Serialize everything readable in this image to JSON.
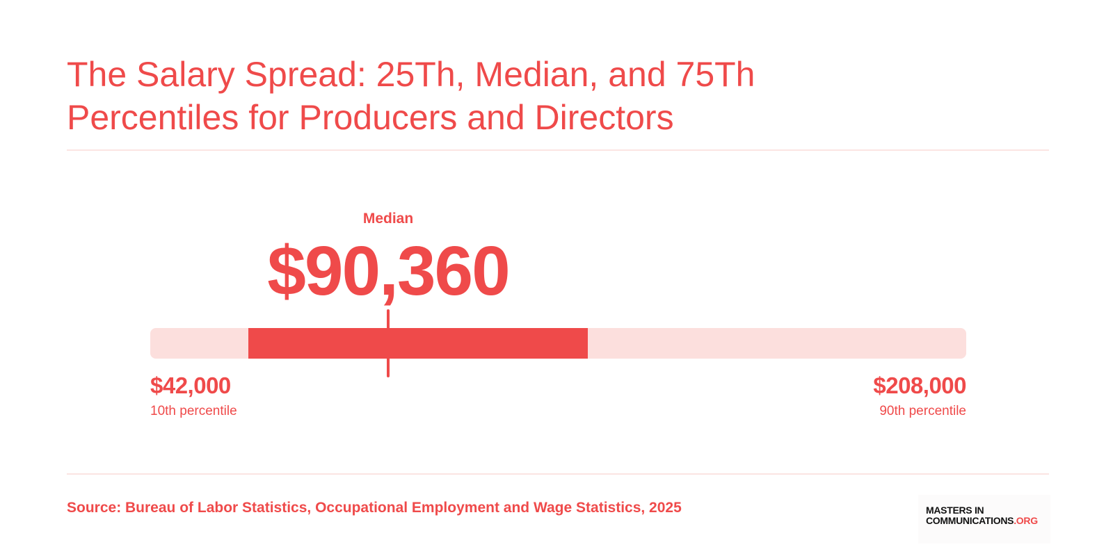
{
  "title": "The Salary Spread: 25Th, Median, and 75Th Percentiles for Producers and Directors",
  "source": "Source: Bureau of Labor Statistics, Occupational Employment and Wage Statistics, 2025",
  "logo": {
    "line1": "MASTERS IN",
    "line2": "COMMUNICATIONS",
    "suffix": ".ORG"
  },
  "colors": {
    "accent": "#ef4a4a",
    "track": "#fcdfdd",
    "divider": "#fbe4e2"
  },
  "chart_data": {
    "type": "bar",
    "range_min": 42000,
    "range_max": 208000,
    "p10": {
      "value": 42000,
      "display": "$42,000",
      "label": "10th percentile"
    },
    "p25": {
      "value": 62000
    },
    "median": {
      "value": 90360,
      "display": "$90,360",
      "label": "Median"
    },
    "p75": {
      "value": 131000
    },
    "p90": {
      "value": 208000,
      "display": "$208,000",
      "label": "90th percentile"
    }
  }
}
